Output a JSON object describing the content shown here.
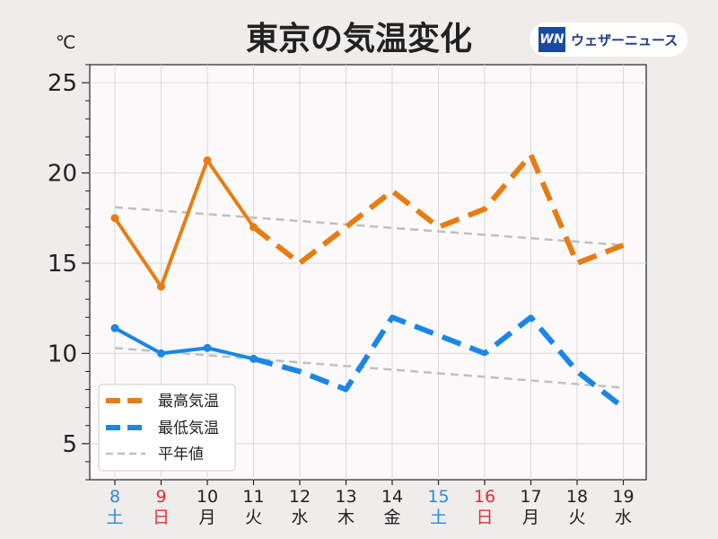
{
  "header": {
    "title": "東京の気温変化",
    "logo_mark": "WN",
    "logo_text": "ウェザーニュース"
  },
  "colors": {
    "high": "#e77d12",
    "low": "#1a86e6",
    "normal": "#bfbfbf",
    "saturday": "#2a8ae0",
    "sunday": "#e03030",
    "weekday": "#222222"
  },
  "chart_data": {
    "type": "line",
    "title": "東京の気温変化",
    "ylabel": "℃",
    "ylim": [
      3,
      26
    ],
    "yticks": [
      5,
      10,
      15,
      20,
      25
    ],
    "grid": true,
    "legend_position": "bottom-left",
    "x": [
      {
        "date": "8",
        "weekday": "土",
        "kind": "saturday"
      },
      {
        "date": "9",
        "weekday": "日",
        "kind": "sunday"
      },
      {
        "date": "10",
        "weekday": "月",
        "kind": "weekday"
      },
      {
        "date": "11",
        "weekday": "火",
        "kind": "weekday"
      },
      {
        "date": "12",
        "weekday": "水",
        "kind": "weekday"
      },
      {
        "date": "13",
        "weekday": "木",
        "kind": "weekday"
      },
      {
        "date": "14",
        "weekday": "金",
        "kind": "weekday"
      },
      {
        "date": "15",
        "weekday": "土",
        "kind": "saturday"
      },
      {
        "date": "16",
        "weekday": "日",
        "kind": "sunday"
      },
      {
        "date": "17",
        "weekday": "月",
        "kind": "weekday"
      },
      {
        "date": "18",
        "weekday": "火",
        "kind": "weekday"
      },
      {
        "date": "19",
        "weekday": "水",
        "kind": "weekday"
      }
    ],
    "series": [
      {
        "name": "最高気温",
        "observed": [
          17.5,
          13.7,
          20.7,
          17.0
        ],
        "forecast": [
          17.0,
          15.0,
          17.0,
          19.0,
          17.0,
          18.0,
          21.0,
          15.0,
          16.0
        ],
        "forecast_start_index": 3
      },
      {
        "name": "最低気温",
        "observed": [
          11.4,
          10.0,
          10.3,
          9.7
        ],
        "forecast": [
          9.7,
          9.0,
          8.0,
          12.0,
          11.0,
          10.0,
          12.0,
          9.0,
          7.0
        ],
        "forecast_start_index": 3
      },
      {
        "name": "平年値",
        "normal_high": [
          18.1,
          16.0
        ],
        "normal_low": [
          10.3,
          8.1
        ]
      }
    ]
  }
}
